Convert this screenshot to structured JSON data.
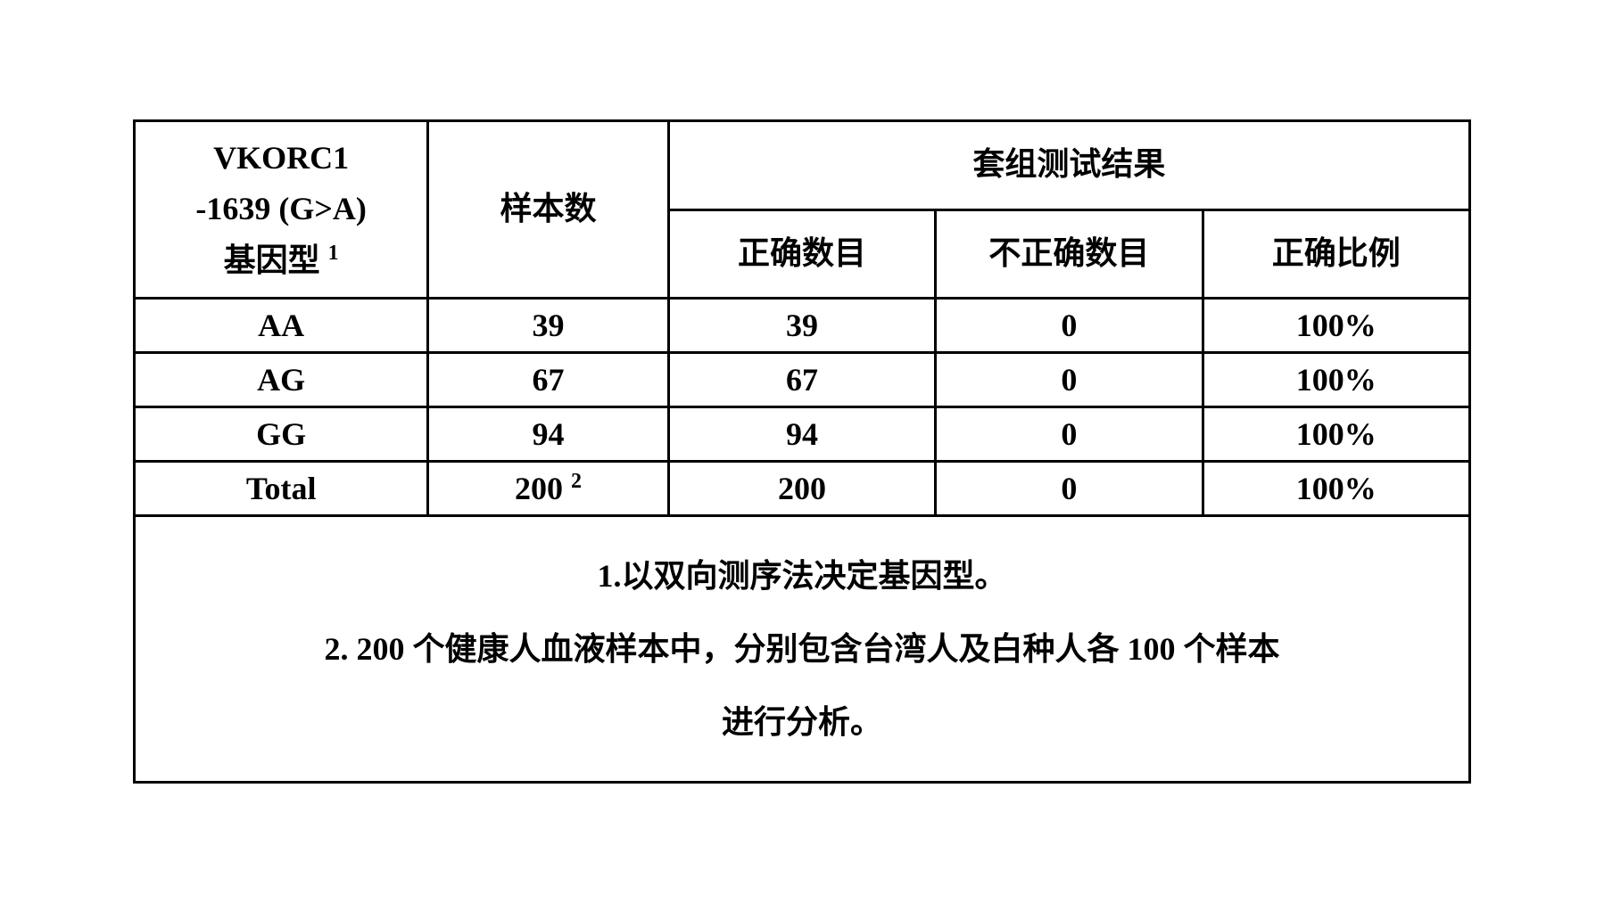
{
  "table": {
    "type": "table",
    "background_color": "#ffffff",
    "border_color": "#000000",
    "border_width": 3,
    "text_color": "#000000",
    "font_family": "Times New Roman, SimSun, serif",
    "header_fontsize": 36,
    "cell_fontsize": 36,
    "headers": {
      "genotype_line1": "VKORC1",
      "genotype_line2": "-1639 (G>A)",
      "genotype_line3": "基因型",
      "genotype_sup": "1",
      "samples": "样本数",
      "kit_results_group": "套组测试结果",
      "correct_count": "正确数目",
      "incorrect_count": "不正确数目",
      "correct_ratio": "正确比例"
    },
    "rows": [
      {
        "genotype": "AA",
        "samples": "39",
        "correct": "39",
        "incorrect": "0",
        "ratio": "100%"
      },
      {
        "genotype": "AG",
        "samples": "67",
        "correct": "67",
        "incorrect": "0",
        "ratio": "100%"
      },
      {
        "genotype": "GG",
        "samples": "94",
        "correct": "94",
        "incorrect": "0",
        "ratio": "100%"
      },
      {
        "genotype": "Total",
        "samples": "200",
        "samples_sup": "2",
        "correct": "200",
        "incorrect": "0",
        "ratio": "100%"
      }
    ],
    "footnotes": {
      "note1": "1.以双向测序法决定基因型。",
      "note2": "2. 200 个健康人血液样本中，分别包含台湾人及白种人各 100 个样本",
      "note2_cont": "进行分析。"
    },
    "column_widths": {
      "genotype": "22%",
      "samples": "18%",
      "correct": "20%",
      "incorrect": "20%",
      "ratio": "20%"
    }
  }
}
